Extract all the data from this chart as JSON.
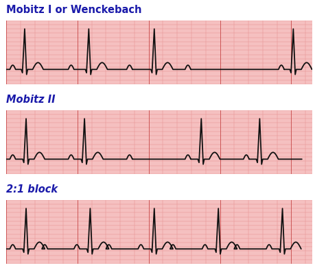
{
  "title1": "Mobitz I or Wenckebach",
  "title2": "Mobitz II",
  "title3": "2:1 block",
  "bg_color": "#ffffff",
  "ecg_bg": "#f5c0c0",
  "grid_minor_color": "#e89090",
  "grid_major_color": "#cc5555",
  "ecg_line_color": "#111111",
  "title_color": "#1a1aaa",
  "title_fontsize": 10.5,
  "title_fontweight": "bold",
  "fig_width": 4.6,
  "fig_height": 3.97,
  "dpi": 100
}
